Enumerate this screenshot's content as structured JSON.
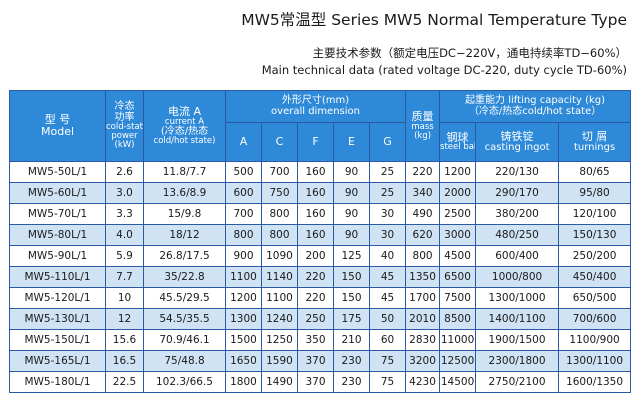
{
  "title": "MW5常温型  Series MW5 Normal Temperature Type",
  "subtitle_cn": "主要技术参数（额定电压DC−220V，通电持续率TD−60%）",
  "subtitle_en": "Main technical data (rated voltage DC-220, duty cycle TD-60%)",
  "header": {
    "model_cn": "型  号",
    "model_en": "Model",
    "power_cn1": "冷态",
    "power_cn2": "功率",
    "power_en1": "cold-state",
    "power_en2": "power",
    "power_unit": "(kW)",
    "current_cn": "电流 A",
    "current_en": "current A",
    "current_state": "(冷态/热态",
    "current_state_en": "cold/hot state)",
    "dim_cn": "外形尺寸(mm)",
    "dim_en": "overall dimension",
    "dims": [
      "A",
      "C",
      "F",
      "E",
      "G"
    ],
    "mass_cn": "质量",
    "mass_en": "mass",
    "mass_unit": "(kg)",
    "lift_cn": "起重能力 lifting capacity (kg)",
    "lift_state": "（冷态/热态cold/hot state）",
    "steel_cn": "钢球",
    "steel_en": "steel ball",
    "ingot_cn": "铸铁锭",
    "ingot_en": "casting ingot",
    "turn_cn": "切 屑",
    "turn_en": "turnings"
  },
  "rows": [
    {
      "model": "MW5-50L/1",
      "power": "2.6",
      "current": "11.8/7.7",
      "A": "500",
      "C": "700",
      "F": "160",
      "E": "90",
      "G": "25",
      "mass": "220",
      "steel": "1200",
      "ingot": "220/130",
      "turn": "80/65"
    },
    {
      "model": "MW5-60L/1",
      "power": "3.0",
      "current": "13.6/8.9",
      "A": "600",
      "C": "750",
      "F": "160",
      "E": "90",
      "G": "25",
      "mass": "340",
      "steel": "2000",
      "ingot": "290/170",
      "turn": "95/80"
    },
    {
      "model": "MW5-70L/1",
      "power": "3.3",
      "current": "15/9.8",
      "A": "700",
      "C": "800",
      "F": "160",
      "E": "90",
      "G": "30",
      "mass": "490",
      "steel": "2500",
      "ingot": "380/200",
      "turn": "120/100"
    },
    {
      "model": "MW5-80L/1",
      "power": "4.0",
      "current": "18/12",
      "A": "800",
      "C": "800",
      "F": "160",
      "E": "90",
      "G": "30",
      "mass": "620",
      "steel": "3000",
      "ingot": "480/250",
      "turn": "150/130"
    },
    {
      "model": "MW5-90L/1",
      "power": "5.9",
      "current": "26.8/17.5",
      "A": "900",
      "C": "1090",
      "F": "200",
      "E": "125",
      "G": "40",
      "mass": "800",
      "steel": "4500",
      "ingot": "600/400",
      "turn": "250/200"
    },
    {
      "model": "MW5-110L/1",
      "power": "7.7",
      "current": "35/22.8",
      "A": "1100",
      "C": "1140",
      "F": "220",
      "E": "150",
      "G": "45",
      "mass": "1350",
      "steel": "6500",
      "ingot": "1000/800",
      "turn": "450/400"
    },
    {
      "model": "MW5-120L/1",
      "power": "10",
      "current": "45.5/29.5",
      "A": "1200",
      "C": "1100",
      "F": "220",
      "E": "150",
      "G": "45",
      "mass": "1700",
      "steel": "7500",
      "ingot": "1300/1000",
      "turn": "650/500"
    },
    {
      "model": "MW5-130L/1",
      "power": "12",
      "current": "54.5/35.5",
      "A": "1300",
      "C": "1240",
      "F": "250",
      "E": "175",
      "G": "50",
      "mass": "2010",
      "steel": "8500",
      "ingot": "1400/1100",
      "turn": "700/600"
    },
    {
      "model": "MW5-150L/1",
      "power": "15.6",
      "current": "70.9/46.1",
      "A": "1500",
      "C": "1250",
      "F": "350",
      "E": "210",
      "G": "60",
      "mass": "2830",
      "steel": "11000",
      "ingot": "1900/1500",
      "turn": "1100/900"
    },
    {
      "model": "MW5-165L/1",
      "power": "16.5",
      "current": "75/48.8",
      "A": "1650",
      "C": "1590",
      "F": "370",
      "E": "230",
      "G": "75",
      "mass": "3200",
      "steel": "12500",
      "ingot": "2300/1800",
      "turn": "1300/1100"
    },
    {
      "model": "MW5-180L/1",
      "power": "22.5",
      "current": "102.3/66.5",
      "A": "1800",
      "C": "1490",
      "F": "370",
      "E": "230",
      "G": "75",
      "mass": "4230",
      "steel": "14500",
      "ingot": "2750/2100",
      "turn": "1600/1350"
    }
  ]
}
